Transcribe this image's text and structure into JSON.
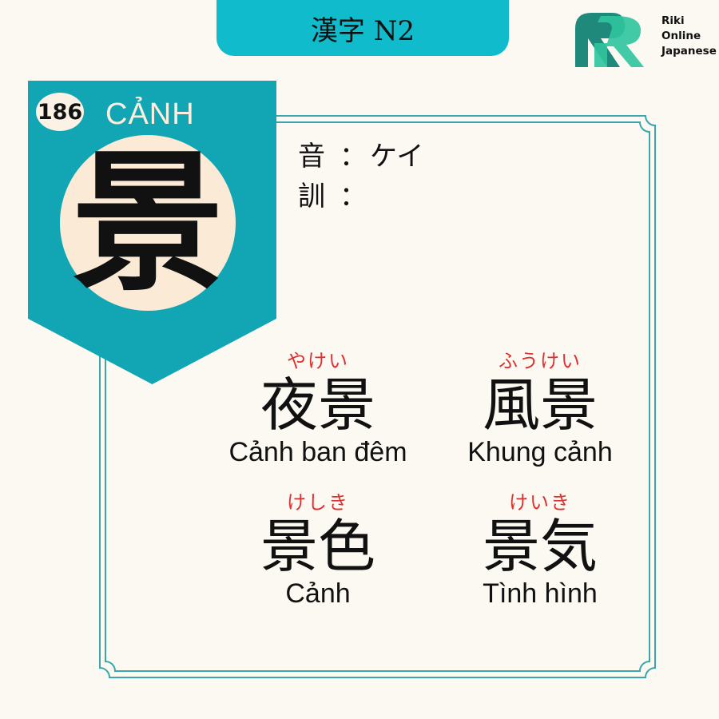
{
  "header": {
    "title": "漢字 N2"
  },
  "logo": {
    "line1": "Riki",
    "line2": "Online",
    "line3": "Japanese",
    "color_dark": "#1f8a7c",
    "color_light": "#2dc49d"
  },
  "badge": {
    "number": "186",
    "reading": "CẢNH",
    "kanji": "景",
    "color": "#12a6b5"
  },
  "readings": {
    "on_label": "音",
    "on_value": "ケイ",
    "kun_label": "訓",
    "kun_value": "",
    "colon": "："
  },
  "vocabulary": [
    {
      "furigana": "やけい",
      "kanji": "夜景",
      "meaning": "Cảnh ban đêm"
    },
    {
      "furigana": "ふうけい",
      "kanji": "風景",
      "meaning": "Khung cảnh"
    },
    {
      "furigana": "けしき",
      "kanji": "景色",
      "meaning": "Cảnh"
    },
    {
      "furigana": "けいき",
      "kanji": "景気",
      "meaning": "Tình hình"
    }
  ],
  "colors": {
    "accent": "#10bccb",
    "furigana": "#e03030",
    "background": "#fcf9f3"
  }
}
